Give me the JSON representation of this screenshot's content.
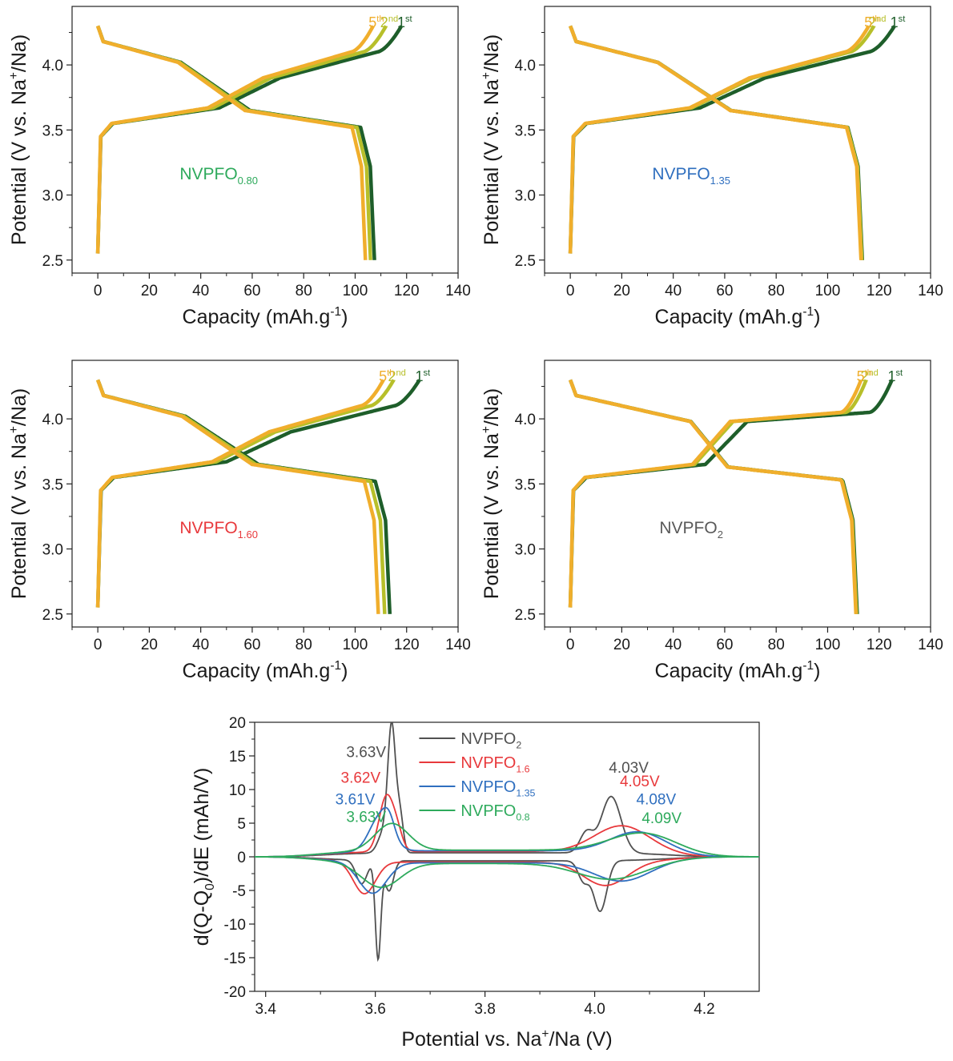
{
  "chart_data": [
    {
      "type": "line",
      "annotation": "NVPFO",
      "annotation_sub": "0.80",
      "annotation_color": "#2eaa5c",
      "xlabel": "Capacity (mAh.g",
      "xlabel_sup": "-1",
      "xlabel_end": ")",
      "ylabel": "Potential (V vs. Na",
      "ylabel_sup": "+",
      "ylabel_end": "/Na)",
      "xlim": [
        -10,
        140
      ],
      "ylim": [
        2.4,
        4.45
      ],
      "xticks": [
        "0",
        "20",
        "40",
        "60",
        "80",
        "100",
        "120",
        "140"
      ],
      "yticks": [
        "2.5",
        "3.0",
        "3.5",
        "4.0"
      ],
      "xtick_values": [
        0,
        20,
        40,
        60,
        80,
        100,
        120,
        140
      ],
      "ytick_values": [
        2.5,
        3.0,
        3.5,
        4.0
      ],
      "series": [
        {
          "label": "1",
          "label_sup": "st",
          "color": "#1e5e2a",
          "charge_end": 118,
          "discharge_end": 107.5
        },
        {
          "label": "2",
          "label_sup": "nd",
          "color": "#b7bf2a",
          "charge_end": 112,
          "discharge_end": 106
        },
        {
          "label": "5",
          "label_sup": "th",
          "color": "#f0ae2c",
          "charge_end": 107,
          "discharge_end": 104
        }
      ]
    },
    {
      "type": "line",
      "annotation": "NVPFO",
      "annotation_sub": "1.35",
      "annotation_color": "#2f6fbf",
      "xlabel": "Capacity (mAh.g",
      "xlabel_sup": "-1",
      "xlabel_end": ")",
      "ylabel": "Potential (V vs. Na",
      "ylabel_sup": "+",
      "ylabel_end": "/Na)",
      "xlim": [
        -10,
        140
      ],
      "ylim": [
        2.4,
        4.45
      ],
      "xticks": [
        "0",
        "20",
        "40",
        "60",
        "80",
        "100",
        "120",
        "140"
      ],
      "yticks": [
        "2.5",
        "3.0",
        "3.5",
        "4.0"
      ],
      "xtick_values": [
        0,
        20,
        40,
        60,
        80,
        100,
        120,
        140
      ],
      "ytick_values": [
        2.5,
        3.0,
        3.5,
        4.0
      ],
      "series": [
        {
          "label": "1",
          "label_sup": "st",
          "color": "#1e5e2a",
          "charge_end": 126,
          "discharge_end": 113.5
        },
        {
          "label": "2",
          "label_sup": "nd",
          "color": "#b7bf2a",
          "charge_end": 118,
          "discharge_end": 113.3
        },
        {
          "label": "5",
          "label_sup": "th",
          "color": "#f0ae2c",
          "charge_end": 116,
          "discharge_end": 113
        }
      ]
    },
    {
      "type": "line",
      "annotation": "NVPFO",
      "annotation_sub": "1.60",
      "annotation_color": "#e8393c",
      "xlabel": "Capacity (mAh.g",
      "xlabel_sup": "-1",
      "xlabel_end": ")",
      "ylabel": "Potential (V vs. Na",
      "ylabel_sup": "+",
      "ylabel_end": "/Na)",
      "xlim": [
        -10,
        140
      ],
      "ylim": [
        2.4,
        4.45
      ],
      "xticks": [
        "0",
        "20",
        "40",
        "60",
        "80",
        "100",
        "120",
        "140"
      ],
      "yticks": [
        "2.5",
        "3.0",
        "3.5",
        "4.0"
      ],
      "xtick_values": [
        0,
        20,
        40,
        60,
        80,
        100,
        120,
        140
      ],
      "ytick_values": [
        2.5,
        3.0,
        3.5,
        4.0
      ],
      "series": [
        {
          "label": "1",
          "label_sup": "st",
          "color": "#1e5e2a",
          "charge_end": 125,
          "discharge_end": 113.5
        },
        {
          "label": "2",
          "label_sup": "nd",
          "color": "#b7bf2a",
          "charge_end": 115,
          "discharge_end": 111.5
        },
        {
          "label": "5",
          "label_sup": "th",
          "color": "#f0ae2c",
          "charge_end": 111,
          "discharge_end": 109
        }
      ]
    },
    {
      "type": "line",
      "annotation": "NVPFO",
      "annotation_sub": "2",
      "annotation_color": "#595959",
      "xlabel": "Capacity (mAh.g",
      "xlabel_sup": "-1",
      "xlabel_end": ")",
      "ylabel": "Potential (V vs. Na",
      "ylabel_sup": "+",
      "ylabel_end": "/Na)",
      "xlim": [
        -10,
        140
      ],
      "ylim": [
        2.4,
        4.45
      ],
      "xticks": [
        "0",
        "20",
        "40",
        "60",
        "80",
        "100",
        "120",
        "140"
      ],
      "yticks": [
        "2.5",
        "3.0",
        "3.5",
        "4.0"
      ],
      "xtick_values": [
        0,
        20,
        40,
        60,
        80,
        100,
        120,
        140
      ],
      "ytick_values": [
        2.5,
        3.0,
        3.5,
        4.0
      ],
      "series": [
        {
          "label": "1",
          "label_sup": "st",
          "color": "#1e5e2a",
          "charge_end": 125,
          "discharge_end": 111.5
        },
        {
          "label": "2",
          "label_sup": "nd",
          "color": "#b7bf2a",
          "charge_end": 115,
          "discharge_end": 111.2
        },
        {
          "label": "5",
          "label_sup": "th",
          "color": "#f0ae2c",
          "charge_end": 113,
          "discharge_end": 111
        }
      ]
    },
    {
      "type": "line",
      "xlabel": "Potential vs. Na",
      "xlabel_sup": "+",
      "xlabel_end": "/Na (V)",
      "ylabel": "d(Q-Q",
      "ylabel_sub": "0",
      "ylabel_end": ")/dE (mAh/V)",
      "xlim": [
        3.38,
        4.3
      ],
      "ylim": [
        -20,
        20
      ],
      "xticks": [
        "3.4",
        "3.6",
        "3.8",
        "4.0",
        "4.2"
      ],
      "yticks": [
        "-20",
        "-15",
        "-10",
        "-5",
        "0",
        "5",
        "10",
        "15",
        "20"
      ],
      "xtick_values": [
        3.4,
        3.6,
        3.8,
        4.0,
        4.2
      ],
      "ytick_values": [
        -20,
        -15,
        -10,
        -5,
        0,
        5,
        10,
        15,
        20
      ],
      "legend": "top-center",
      "series": [
        {
          "name": "NVPFO",
          "name_sub": "2",
          "color": "#505050",
          "peaks": [
            [
              3.63,
              18.3,
              0.007
            ],
            [
              3.645,
              5.5,
              0.006
            ],
            [
              3.615,
              3.0,
              0.01
            ],
            [
              4.03,
              8.4,
              0.018
            ],
            [
              3.985,
              3.0,
              0.012
            ]
          ],
          "troughs": [
            [
              3.605,
              -14.5,
              0.005
            ],
            [
              3.575,
              -3.5,
              0.01
            ],
            [
              3.625,
              -4.5,
              0.008
            ],
            [
              4.01,
              -7.5,
              0.012
            ],
            [
              3.98,
              -3.0,
              0.01
            ]
          ],
          "base": 0.6,
          "base_neg": -0.6,
          "labels": [
            {
              "text": "3.63V",
              "x": 3.63,
              "y": 14.8
            },
            {
              "text": "4.03V",
              "x": 4.03,
              "y": 12.5
            }
          ]
        },
        {
          "name": "NVPFO",
          "name_sub": "1.6",
          "color": "#e8393c",
          "peaks": [
            [
              3.62,
              8.1,
              0.013
            ],
            [
              3.64,
              2.5,
              0.01
            ],
            [
              4.05,
              3.9,
              0.05
            ]
          ],
          "troughs": [
            [
              3.58,
              -4.8,
              0.02
            ],
            [
              4.02,
              -3.5,
              0.04
            ]
          ],
          "base": 0.8,
          "base_neg": -0.8,
          "labels": [
            {
              "text": "3.62V",
              "x": 3.62,
              "y": 11.0
            },
            {
              "text": "4.05V",
              "x": 4.05,
              "y": 10.5
            }
          ]
        },
        {
          "name": "NVPFO",
          "name_sub": "1.35",
          "color": "#2f6fbf",
          "peaks": [
            [
              3.61,
              5.3,
              0.02
            ],
            [
              3.625,
              2.0,
              0.01
            ],
            [
              4.08,
              3.0,
              0.05
            ]
          ],
          "troughs": [
            [
              3.595,
              -4.6,
              0.025
            ],
            [
              4.05,
              -2.8,
              0.05
            ]
          ],
          "base": 0.9,
          "base_neg": -0.9,
          "labels": [
            {
              "text": "3.61V",
              "x": 3.61,
              "y": 7.8
            },
            {
              "text": "4.08V",
              "x": 4.08,
              "y": 7.8
            }
          ]
        },
        {
          "name": "NVPFO",
          "name_sub": "0.8",
          "color": "#2eaa5c",
          "peaks": [
            [
              3.63,
              4.0,
              0.03
            ],
            [
              4.09,
              2.8,
              0.06
            ]
          ],
          "troughs": [
            [
              3.61,
              -3.6,
              0.035
            ],
            [
              4.03,
              -2.4,
              0.06
            ]
          ],
          "base": 1.0,
          "base_neg": -1.0,
          "labels": [
            {
              "text": "3.63V",
              "x": 3.63,
              "y": 5.2
            },
            {
              "text": "4.09V",
              "x": 4.09,
              "y": 5.0
            }
          ]
        }
      ]
    }
  ]
}
